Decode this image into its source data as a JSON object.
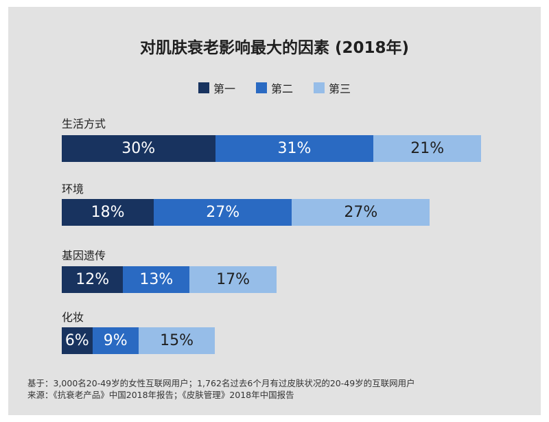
{
  "colors": {
    "first": "#18335f",
    "second": "#2a6ac2",
    "third": "#96bde8"
  },
  "chart_data": {
    "type": "bar",
    "orientation": "horizontal",
    "stacked": true,
    "title": "对肌肤衰老影响最大的因素 (2018年)",
    "legend_position": "top",
    "grid": false,
    "categories": [
      "生活方式",
      "环境",
      "基因遗传",
      "化妆"
    ],
    "series": [
      {
        "name": "第一",
        "values": [
          30,
          18,
          12,
          6
        ]
      },
      {
        "name": "第二",
        "values": [
          31,
          27,
          13,
          9
        ]
      },
      {
        "name": "第三",
        "values": [
          21,
          27,
          17,
          15
        ]
      }
    ],
    "value_suffix": "%"
  },
  "footnote": {
    "base": "基于：3,000名20-49岁的女性互联网用户；1,762名过去6个月有过皮肤状况的20-49岁的互联网用户",
    "source": "来源：《抗衰老产品》中国2018年报告；《皮肤管理》2018年中国报告"
  }
}
